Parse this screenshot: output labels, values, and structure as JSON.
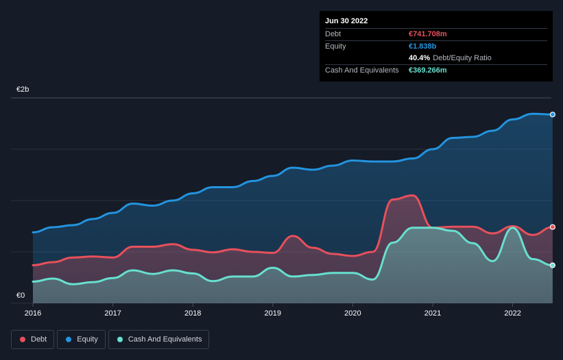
{
  "tooltip": {
    "date": "Jun 30 2022",
    "debt_label": "Debt",
    "debt_value": "€741.708m",
    "equity_label": "Equity",
    "equity_value": "€1.838b",
    "ratio_value": "40.4%",
    "ratio_label": "Debt/Equity Ratio",
    "cash_label": "Cash And Equivalents",
    "cash_value": "€369.266m"
  },
  "legend": {
    "debt": "Debt",
    "equity": "Equity",
    "cash": "Cash And Equivalents"
  },
  "colors": {
    "debt": "#e8505b",
    "equity": "#2394df",
    "cash": "#68e0cf",
    "background": "#151b27"
  },
  "chart_data": {
    "type": "area",
    "title": "",
    "xlabel": "",
    "ylabel": "",
    "y_unit": "€ millions",
    "ylim": [
      0,
      2000
    ],
    "y_ticks": [
      {
        "value": 2000,
        "label": "€2b"
      },
      {
        "value": 0,
        "label": "€0"
      }
    ],
    "x_range": [
      2015.75,
      2022.5
    ],
    "x_ticks": [
      {
        "value": 2016,
        "label": "2016"
      },
      {
        "value": 2017,
        "label": "2017"
      },
      {
        "value": 2018,
        "label": "2018"
      },
      {
        "value": 2019,
        "label": "2019"
      },
      {
        "value": 2020,
        "label": "2020"
      },
      {
        "value": 2021,
        "label": "2021"
      },
      {
        "value": 2022,
        "label": "2022"
      }
    ],
    "series": [
      {
        "key": "equity",
        "name": "Equity",
        "x": [
          2016.0,
          2016.25,
          2016.5,
          2016.75,
          2017.0,
          2017.25,
          2017.5,
          2017.75,
          2018.0,
          2018.25,
          2018.5,
          2018.75,
          2019.0,
          2019.25,
          2019.5,
          2019.75,
          2020.0,
          2020.25,
          2020.5,
          2020.75,
          2021.0,
          2021.25,
          2021.5,
          2021.75,
          2022.0,
          2022.25,
          2022.5
        ],
        "values": [
          690,
          740,
          760,
          820,
          880,
          970,
          950,
          1000,
          1070,
          1130,
          1130,
          1190,
          1240,
          1320,
          1300,
          1340,
          1390,
          1380,
          1380,
          1410,
          1500,
          1610,
          1620,
          1680,
          1790,
          1845,
          1838
        ]
      },
      {
        "key": "debt",
        "name": "Debt",
        "x": [
          2016.0,
          2016.25,
          2016.5,
          2016.75,
          2017.0,
          2017.25,
          2017.5,
          2017.75,
          2018.0,
          2018.25,
          2018.5,
          2018.75,
          2019.0,
          2019.25,
          2019.5,
          2019.75,
          2020.0,
          2020.25,
          2020.5,
          2020.75,
          2021.0,
          2021.25,
          2021.5,
          2021.75,
          2022.0,
          2022.25,
          2022.5
        ],
        "values": [
          370,
          400,
          445,
          455,
          445,
          550,
          550,
          575,
          520,
          495,
          525,
          500,
          490,
          655,
          540,
          480,
          460,
          500,
          1010,
          1050,
          735,
          745,
          745,
          680,
          750,
          665,
          742
        ]
      },
      {
        "key": "cash",
        "name": "Cash And Equivalents",
        "x": [
          2016.0,
          2016.25,
          2016.5,
          2016.75,
          2017.0,
          2017.25,
          2017.5,
          2017.75,
          2018.0,
          2018.25,
          2018.5,
          2018.75,
          2019.0,
          2019.25,
          2019.5,
          2019.75,
          2020.0,
          2020.25,
          2020.5,
          2020.75,
          2021.0,
          2021.25,
          2021.5,
          2021.75,
          2022.0,
          2022.25,
          2022.5
        ],
        "values": [
          210,
          240,
          185,
          205,
          245,
          320,
          285,
          320,
          290,
          215,
          260,
          260,
          345,
          260,
          275,
          295,
          295,
          230,
          590,
          735,
          735,
          705,
          585,
          410,
          735,
          430,
          369
        ]
      }
    ]
  }
}
